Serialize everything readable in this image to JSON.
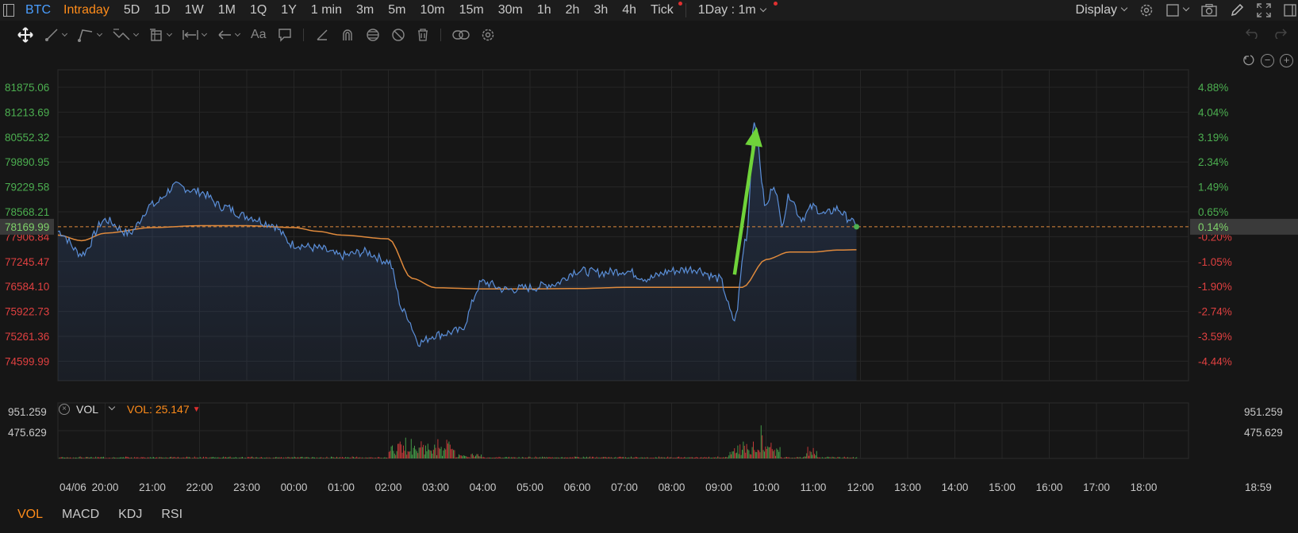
{
  "toolbar": {
    "symbol": "BTC",
    "timeframes": [
      "Intraday",
      "5D",
      "1D",
      "1W",
      "1M",
      "1Q",
      "1Y",
      "1 min",
      "3m",
      "5m",
      "10m",
      "15m",
      "30m",
      "1h",
      "2h",
      "3h",
      "4h",
      "Tick"
    ],
    "active_timeframe": "Intraday",
    "interval_select": "1Day : 1m",
    "display_label": "Display"
  },
  "drawing_tools": [
    "move-icon",
    "line-tool-icon",
    "channel-tool-icon",
    "fib-tool-icon",
    "pattern-tool-icon",
    "measure-tool-icon",
    "arrow-tool-icon",
    "text-tool-icon",
    "comment-tool-icon",
    "eraser-icon",
    "magnet-icon",
    "visibility-icon",
    "hide-icon",
    "trash-icon",
    "link-icon",
    "settings-icon"
  ],
  "colors": {
    "price_line": "#5b8fd9",
    "avg_line": "#e08a3c",
    "up": "#4caf50",
    "down": "#e04040",
    "accent": "#ff8c1a",
    "annotation_arrow": "#6fd33a"
  },
  "chart_data": {
    "type": "line",
    "title": "",
    "x_labels": [
      "04/06",
      "20:00",
      "21:00",
      "22:00",
      "23:00",
      "00:00",
      "01:00",
      "02:00",
      "03:00",
      "04:00",
      "05:00",
      "06:00",
      "07:00",
      "08:00",
      "09:00",
      "10:00",
      "11:00",
      "12:00",
      "13:00",
      "14:00",
      "15:00",
      "16:00",
      "17:00",
      "18:00",
      "18:59"
    ],
    "y_left_ticks": [
      "81875.06",
      "81213.69",
      "80552.32",
      "79890.95",
      "79229.58",
      "78568.21",
      "77906.84",
      "77245.47",
      "76584.10",
      "75922.73",
      "75261.36",
      "74599.99"
    ],
    "y_right_ticks": [
      "4.88%",
      "4.04%",
      "3.19%",
      "2.34%",
      "1.49%",
      "0.65%",
      "-0.20%",
      "-1.05%",
      "-1.90%",
      "-2.74%",
      "-3.59%",
      "-4.44%"
    ],
    "ylim": [
      74599.99,
      81875.06
    ],
    "last_price": "78169.99",
    "last_change": "0.14%",
    "series": [
      {
        "name": "",
        "times": [
          "19:00",
          "19:30",
          "20:00",
          "20:30",
          "21:00",
          "21:30",
          "22:00",
          "22:30",
          "23:00",
          "23:30",
          "00:00",
          "00:30",
          "01:00",
          "01:30",
          "02:00",
          "02:20",
          "02:40",
          "03:00",
          "03:30",
          "04:00",
          "04:30",
          "05:00",
          "05:30",
          "06:00",
          "06:30",
          "07:00",
          "07:30",
          "08:00",
          "08:30",
          "09:00",
          "09:20",
          "09:35",
          "09:45",
          "10:00",
          "10:10",
          "10:20",
          "10:30",
          "10:45",
          "11:00",
          "11:15",
          "11:30",
          "11:45",
          "11:55"
        ],
        "values": [
          78050,
          77450,
          78350,
          78000,
          78750,
          79250,
          79100,
          78700,
          78450,
          78250,
          77700,
          77600,
          77400,
          77500,
          77250,
          75900,
          75100,
          75300,
          75400,
          76700,
          76500,
          76550,
          76650,
          77000,
          76950,
          77000,
          76800,
          77000,
          77050,
          76800,
          75700,
          77900,
          81000,
          78700,
          79300,
          78300,
          79000,
          78400,
          78700,
          78500,
          78650,
          78400,
          78169.99
        ]
      },
      {
        "name": "",
        "times": [
          "19:00",
          "19:30",
          "20:00",
          "21:00",
          "22:00",
          "23:00",
          "00:00",
          "00:30",
          "01:00",
          "02:00",
          "02:30",
          "03:00",
          "04:00",
          "05:00",
          "06:00",
          "07:00",
          "08:00",
          "09:00",
          "09:30",
          "10:00",
          "10:30",
          "11:00",
          "11:30",
          "11:55"
        ],
        "values": [
          77950,
          77800,
          78000,
          78150,
          78200,
          78200,
          78150,
          78050,
          77950,
          77850,
          76800,
          76550,
          76520,
          76520,
          76530,
          76560,
          76560,
          76560,
          76560,
          77300,
          77500,
          77500,
          77550,
          77560
        ]
      }
    ],
    "volume": {
      "label": "VOL",
      "value": "25.147",
      "y_ticks": [
        "951.259",
        "475.629"
      ],
      "max": 951.259
    }
  },
  "bottom_tabs": [
    "VOL",
    "MACD",
    "KDJ",
    "RSI"
  ],
  "active_bottom_tab": "VOL"
}
